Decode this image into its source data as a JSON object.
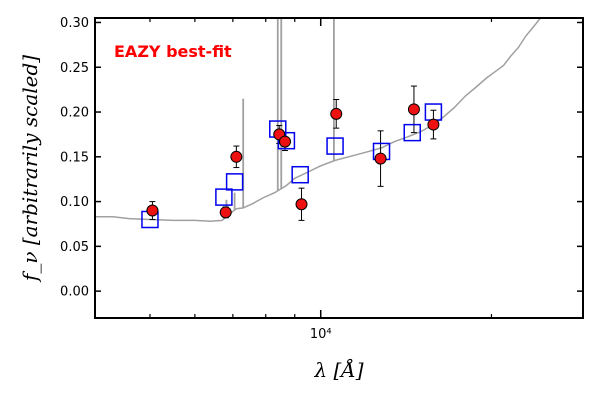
{
  "chart_data": {
    "type": "scatter",
    "annotation": {
      "text": "EAZY best-fit",
      "color": "#ff0000"
    },
    "xlabel": "λ [Å]",
    "ylabel": "f_ν [arbitrarily scaled]",
    "xscale": "log",
    "xlim": [
      4000,
      29000
    ],
    "ylim": [
      -0.03,
      0.305
    ],
    "yticks": [
      0.0,
      0.05,
      0.1,
      0.15,
      0.2,
      0.25,
      0.3
    ],
    "ytick_labels": [
      "0.00",
      "0.05",
      "0.10",
      "0.15",
      "0.20",
      "0.25",
      "0.30"
    ],
    "xtick_major": [
      10000
    ],
    "xtick_major_labels": [
      "10⁴"
    ],
    "xtick_minor": [
      5000,
      6000,
      7000,
      8000,
      9000,
      20000
    ],
    "grid": false,
    "colors": {
      "template": "#a0a0a0",
      "observed": "#ee1111",
      "model": "#0000ee"
    },
    "template_continuum": [
      [
        4000,
        0.083
      ],
      [
        4300,
        0.083
      ],
      [
        4600,
        0.081
      ],
      [
        5000,
        0.08
      ],
      [
        5500,
        0.079
      ],
      [
        6000,
        0.079
      ],
      [
        6400,
        0.078
      ],
      [
        6700,
        0.079
      ],
      [
        6900,
        0.086
      ],
      [
        7100,
        0.092
      ],
      [
        7300,
        0.093
      ],
      [
        7600,
        0.098
      ],
      [
        7900,
        0.104
      ],
      [
        8300,
        0.11
      ],
      [
        8700,
        0.118
      ],
      [
        9000,
        0.126
      ],
      [
        9500,
        0.133
      ],
      [
        10000,
        0.14
      ],
      [
        10600,
        0.146
      ],
      [
        11200,
        0.15
      ],
      [
        12000,
        0.155
      ],
      [
        12800,
        0.16
      ],
      [
        13500,
        0.167
      ],
      [
        14200,
        0.172
      ],
      [
        15000,
        0.178
      ],
      [
        15800,
        0.186
      ],
      [
        16500,
        0.195
      ],
      [
        17200,
        0.205
      ],
      [
        18000,
        0.218
      ],
      [
        18800,
        0.228
      ],
      [
        19600,
        0.238
      ],
      [
        20400,
        0.246
      ],
      [
        21000,
        0.252
      ],
      [
        21600,
        0.262
      ],
      [
        22300,
        0.272
      ],
      [
        23000,
        0.285
      ],
      [
        23700,
        0.295
      ],
      [
        24400,
        0.305
      ]
    ],
    "template_lines": [
      {
        "x": 6820,
        "top": 0.102
      },
      {
        "x": 7050,
        "top": 0.11
      },
      {
        "x": 7300,
        "top": 0.215
      },
      {
        "x": 8400,
        "top": 0.31
      },
      {
        "x": 8520,
        "top": 0.31
      },
      {
        "x": 10550,
        "top": 0.31
      }
    ],
    "observed": [
      {
        "x": 5050,
        "y": 0.09,
        "err": 0.01
      },
      {
        "x": 6800,
        "y": 0.088,
        "err": 0.006
      },
      {
        "x": 7100,
        "y": 0.15,
        "err": 0.012
      },
      {
        "x": 8450,
        "y": 0.175,
        "err": 0.01
      },
      {
        "x": 8650,
        "y": 0.167,
        "err": 0.01
      },
      {
        "x": 9250,
        "y": 0.097,
        "err": 0.018
      },
      {
        "x": 10650,
        "y": 0.198,
        "err": 0.016
      },
      {
        "x": 12750,
        "y": 0.148,
        "err": 0.031
      },
      {
        "x": 14600,
        "y": 0.203,
        "err": 0.026
      },
      {
        "x": 15800,
        "y": 0.186,
        "err": 0.016
      }
    ],
    "model": [
      {
        "x": 5000,
        "y": 0.08
      },
      {
        "x": 6750,
        "y": 0.105
      },
      {
        "x": 7050,
        "y": 0.122
      },
      {
        "x": 8400,
        "y": 0.181
      },
      {
        "x": 8700,
        "y": 0.168
      },
      {
        "x": 9200,
        "y": 0.13
      },
      {
        "x": 10600,
        "y": 0.162
      },
      {
        "x": 12800,
        "y": 0.156
      },
      {
        "x": 14500,
        "y": 0.177
      },
      {
        "x": 15800,
        "y": 0.2
      }
    ]
  }
}
